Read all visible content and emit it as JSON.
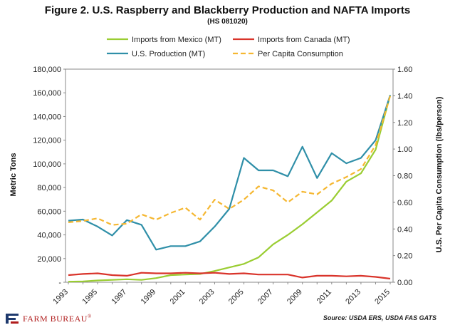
{
  "chart_data": {
    "type": "line",
    "title": "Figure 2. U.S. Raspberry  and Blackberry Production and NAFTA Imports",
    "subtitle": "(HS 081020)",
    "ylabel": "Metric Tons",
    "y2label": "U.S. Per Capita Consumption  (lbs/person)",
    "ylim": [
      0,
      180000
    ],
    "y2lim": [
      0,
      1.6
    ],
    "yticks": [
      "-",
      "20,000",
      "40,000",
      "60,000",
      "80,000",
      "100,000",
      "120,000",
      "140,000",
      "160,000",
      "180,000"
    ],
    "y2ticks": [
      "0.00",
      "0.20",
      "0.40",
      "0.60",
      "0.80",
      "1.00",
      "1.20",
      "1.40",
      "1.60"
    ],
    "x": [
      1993,
      1994,
      1995,
      1996,
      1997,
      1998,
      1999,
      2000,
      2001,
      2002,
      2003,
      2004,
      2005,
      2006,
      2007,
      2008,
      2009,
      2010,
      2011,
      2012,
      2013,
      2014,
      2015
    ],
    "xtick_labels": [
      "1993",
      "1995",
      "1997",
      "1999",
      "2001",
      "2003",
      "2005",
      "2007",
      "2009",
      "2011",
      "2013",
      "2015"
    ],
    "grid": false,
    "legend_position": "top",
    "series": [
      {
        "name": "Imports from Mexico (MT)",
        "axis": "left",
        "color": "#9acd32",
        "dash": false,
        "values": [
          500,
          700,
          1500,
          2000,
          2500,
          2000,
          3500,
          6000,
          6500,
          7000,
          9500,
          12500,
          15500,
          21000,
          32000,
          40000,
          49000,
          59000,
          69000,
          85000,
          92000,
          112000,
          158000
        ]
      },
      {
        "name": "Imports from Canada (MT)",
        "axis": "left",
        "color": "#d9342b",
        "dash": false,
        "values": [
          6000,
          7000,
          7500,
          6000,
          5500,
          8000,
          7500,
          7500,
          8000,
          7500,
          8000,
          7000,
          7500,
          6500,
          6500,
          6500,
          4000,
          5500,
          5500,
          5000,
          5500,
          4500,
          3000
        ]
      },
      {
        "name": "U.S. Production (MT)",
        "axis": "left",
        "color": "#2f8fa8",
        "dash": false,
        "values": [
          52000,
          53000,
          47000,
          39500,
          52500,
          48500,
          27500,
          30500,
          30500,
          34500,
          47000,
          62000,
          105000,
          94500,
          94500,
          89500,
          114500,
          88000,
          109000,
          100500,
          105000,
          120000,
          158000
        ]
      },
      {
        "name": "Per Capita Consumption",
        "axis": "right",
        "color": "#f5b731",
        "dash": true,
        "values": [
          0.45,
          0.46,
          0.48,
          0.43,
          0.44,
          0.51,
          0.47,
          0.52,
          0.56,
          0.47,
          0.62,
          0.55,
          0.62,
          0.72,
          0.69,
          0.6,
          0.68,
          0.66,
          0.74,
          0.79,
          0.85,
          1.03,
          1.4
        ]
      }
    ],
    "source": "Source: USDA ERS, USDA FAS GATS"
  },
  "logo": {
    "text": "FARM BUREAU",
    "mark": "®",
    "color": "#b01c1c"
  }
}
